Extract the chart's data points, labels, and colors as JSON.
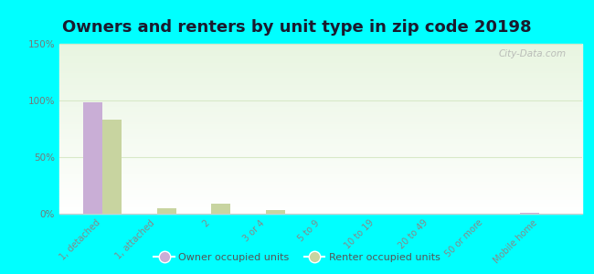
{
  "title": "Owners and renters by unit type in zip code 20198",
  "categories": [
    "1, detached",
    "1, attached",
    "2",
    "3 or 4",
    "5 to 9",
    "10 to 19",
    "20 to 49",
    "50 or more",
    "Mobile home"
  ],
  "owner_values": [
    98,
    0,
    0,
    0,
    0,
    0,
    0,
    0,
    1
  ],
  "renter_values": [
    83,
    5,
    9,
    3,
    0,
    0,
    0,
    0,
    0
  ],
  "owner_color": "#c9aed6",
  "renter_color": "#c8d4a0",
  "bar_width": 0.35,
  "ylim": [
    0,
    150
  ],
  "yticks": [
    0,
    50,
    100,
    150
  ],
  "ytick_labels": [
    "0%",
    "50%",
    "100%",
    "150%"
  ],
  "background_color": "#00ffff",
  "grid_color": "#d8e8c8",
  "title_fontsize": 13,
  "legend_label_owner": "Owner occupied units",
  "legend_label_renter": "Renter occupied units",
  "watermark": "City-Data.com"
}
